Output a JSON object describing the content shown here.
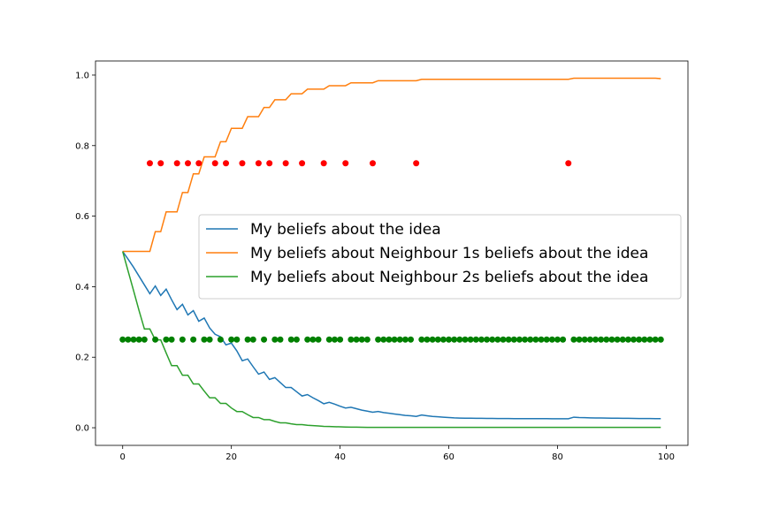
{
  "chart_data": {
    "type": "line",
    "title": "",
    "xlabel": "",
    "ylabel": "",
    "xlim": [
      -5,
      104
    ],
    "ylim": [
      -0.05,
      1.04
    ],
    "xticks": [
      0,
      20,
      40,
      60,
      80,
      100
    ],
    "xtick_labels": [
      "0",
      "20",
      "40",
      "60",
      "80",
      "100"
    ],
    "yticks": [
      0.0,
      0.2,
      0.4,
      0.6,
      0.8,
      1.0
    ],
    "ytick_labels": [
      "0.0",
      "0.2",
      "0.4",
      "0.6",
      "0.8",
      "1.0"
    ],
    "grid": false,
    "legend": "center-right",
    "series": [
      {
        "name": "My beliefs about the idea",
        "color": "#1f77b4",
        "type": "line",
        "x": [
          0,
          1,
          2,
          3,
          4,
          5,
          6,
          7,
          8,
          9,
          10,
          11,
          12,
          13,
          14,
          15,
          16,
          17,
          18,
          19,
          20,
          21,
          22,
          23,
          24,
          25,
          26,
          27,
          28,
          29,
          30,
          31,
          32,
          33,
          34,
          35,
          36,
          37,
          38,
          39,
          40,
          41,
          42,
          43,
          44,
          45,
          46,
          47,
          48,
          49,
          50,
          51,
          52,
          53,
          54,
          55,
          56,
          57,
          58,
          59,
          60,
          61,
          62,
          63,
          64,
          65,
          66,
          67,
          68,
          69,
          70,
          71,
          72,
          73,
          74,
          75,
          76,
          77,
          78,
          79,
          80,
          81,
          82,
          83,
          84,
          85,
          86,
          87,
          88,
          89,
          90,
          91,
          92,
          93,
          94,
          95,
          96,
          97,
          98,
          99
        ],
        "y": [
          0.5,
          0.478,
          0.455,
          0.43,
          0.405,
          0.38,
          0.402,
          0.375,
          0.393,
          0.363,
          0.335,
          0.35,
          0.32,
          0.332,
          0.302,
          0.311,
          0.283,
          0.265,
          0.258,
          0.235,
          0.24,
          0.218,
          0.19,
          0.195,
          0.173,
          0.152,
          0.158,
          0.137,
          0.142,
          0.128,
          0.114,
          0.114,
          0.102,
          0.09,
          0.094,
          0.085,
          0.077,
          0.068,
          0.072,
          0.067,
          0.061,
          0.056,
          0.058,
          0.054,
          0.05,
          0.047,
          0.044,
          0.046,
          0.043,
          0.041,
          0.039,
          0.037,
          0.035,
          0.034,
          0.032,
          0.036,
          0.034,
          0.032,
          0.031,
          0.03,
          0.029,
          0.028,
          0.0275,
          0.0272,
          0.027,
          0.0268,
          0.0266,
          0.0264,
          0.0263,
          0.0262,
          0.0261,
          0.026,
          0.0259,
          0.0259,
          0.0258,
          0.0258,
          0.0257,
          0.0257,
          0.0257,
          0.0256,
          0.0256,
          0.0256,
          0.0256,
          0.03,
          0.029,
          0.0285,
          0.028,
          0.0278,
          0.0276,
          0.0274,
          0.0272,
          0.027,
          0.0268,
          0.0266,
          0.0264,
          0.0262,
          0.0261,
          0.026,
          0.0258,
          0.0258
        ]
      },
      {
        "name": "My beliefs about Neighbour 1s beliefs about the idea",
        "color": "#ff7f0e",
        "type": "line",
        "x": [
          0,
          1,
          2,
          3,
          4,
          5,
          6,
          7,
          8,
          9,
          10,
          11,
          12,
          13,
          14,
          15,
          16,
          17,
          18,
          19,
          20,
          21,
          22,
          23,
          24,
          25,
          26,
          27,
          28,
          29,
          30,
          31,
          32,
          33,
          34,
          35,
          36,
          37,
          38,
          39,
          40,
          41,
          42,
          43,
          44,
          45,
          46,
          47,
          48,
          49,
          50,
          51,
          52,
          53,
          54,
          55,
          56,
          57,
          58,
          59,
          60,
          61,
          62,
          63,
          64,
          65,
          66,
          67,
          68,
          69,
          70,
          71,
          72,
          73,
          74,
          75,
          76,
          77,
          78,
          79,
          80,
          81,
          82,
          83,
          84,
          85,
          86,
          87,
          88,
          89,
          90,
          91,
          92,
          93,
          94,
          95,
          96,
          97,
          98,
          99
        ],
        "y": [
          0.5,
          0.5,
          0.5,
          0.5,
          0.5,
          0.5,
          0.556,
          0.556,
          0.612,
          0.612,
          0.612,
          0.667,
          0.667,
          0.72,
          0.72,
          0.768,
          0.768,
          0.768,
          0.811,
          0.811,
          0.849,
          0.849,
          0.849,
          0.882,
          0.882,
          0.882,
          0.908,
          0.908,
          0.93,
          0.93,
          0.93,
          0.947,
          0.947,
          0.947,
          0.96,
          0.96,
          0.96,
          0.96,
          0.97,
          0.97,
          0.97,
          0.97,
          0.978,
          0.978,
          0.978,
          0.978,
          0.978,
          0.984,
          0.984,
          0.984,
          0.984,
          0.984,
          0.984,
          0.984,
          0.984,
          0.988,
          0.988,
          0.988,
          0.988,
          0.988,
          0.988,
          0.988,
          0.988,
          0.988,
          0.988,
          0.988,
          0.988,
          0.988,
          0.988,
          0.988,
          0.988,
          0.988,
          0.988,
          0.988,
          0.988,
          0.988,
          0.988,
          0.988,
          0.988,
          0.988,
          0.988,
          0.988,
          0.988,
          0.991,
          0.991,
          0.991,
          0.991,
          0.991,
          0.991,
          0.991,
          0.991,
          0.991,
          0.991,
          0.991,
          0.991,
          0.991,
          0.991,
          0.991,
          0.991,
          0.99
        ]
      },
      {
        "name": "My beliefs about Neighbour 2s beliefs about the idea",
        "color": "#2ca02c",
        "type": "line",
        "x": [
          0,
          1,
          2,
          3,
          4,
          5,
          6,
          7,
          8,
          9,
          10,
          11,
          12,
          13,
          14,
          15,
          16,
          17,
          18,
          19,
          20,
          21,
          22,
          23,
          24,
          25,
          26,
          27,
          28,
          29,
          30,
          31,
          32,
          33,
          34,
          35,
          36,
          37,
          38,
          39,
          40,
          41,
          42,
          43,
          44,
          45,
          46,
          47,
          48,
          49,
          50,
          51,
          52,
          53,
          54,
          55,
          56,
          57,
          58,
          59,
          60,
          61,
          62,
          63,
          64,
          65,
          66,
          67,
          68,
          69,
          70,
          71,
          72,
          73,
          74,
          75,
          76,
          77,
          78,
          79,
          80,
          81,
          82,
          83,
          84,
          85,
          86,
          87,
          88,
          89,
          90,
          91,
          92,
          93,
          94,
          95,
          96,
          97,
          98,
          99
        ],
        "y": [
          0.5,
          0.444,
          0.389,
          0.333,
          0.28,
          0.28,
          0.249,
          0.249,
          0.212,
          0.176,
          0.176,
          0.149,
          0.149,
          0.124,
          0.124,
          0.104,
          0.085,
          0.085,
          0.069,
          0.069,
          0.056,
          0.046,
          0.046,
          0.037,
          0.029,
          0.029,
          0.023,
          0.023,
          0.018,
          0.014,
          0.014,
          0.011,
          0.009,
          0.009,
          0.007,
          0.006,
          0.005,
          0.004,
          0.0035,
          0.003,
          0.0025,
          0.002,
          0.0018,
          0.0016,
          0.0014,
          0.0012,
          0.0011,
          0.001,
          0.001,
          0.001,
          0.001,
          0.001,
          0.001,
          0.001,
          0.001,
          0.001,
          0.001,
          0.001,
          0.001,
          0.001,
          0.001,
          0.001,
          0.001,
          0.001,
          0.001,
          0.001,
          0.001,
          0.001,
          0.001,
          0.001,
          0.001,
          0.001,
          0.001,
          0.001,
          0.001,
          0.001,
          0.001,
          0.001,
          0.001,
          0.001,
          0.001,
          0.001,
          0.001,
          0.001,
          0.001,
          0.001,
          0.001,
          0.001,
          0.001,
          0.001,
          0.001,
          0.001,
          0.001,
          0.001,
          0.001,
          0.001,
          0.001,
          0.001,
          0.001,
          0.001
        ]
      },
      {
        "color": "#ff0000",
        "type": "scatter",
        "x": [
          5,
          7,
          10,
          12,
          14,
          17,
          19,
          22,
          25,
          27,
          30,
          33,
          37,
          41,
          46,
          54,
          82
        ],
        "y": [
          0.75,
          0.75,
          0.75,
          0.75,
          0.75,
          0.75,
          0.75,
          0.75,
          0.75,
          0.75,
          0.75,
          0.75,
          0.75,
          0.75,
          0.75,
          0.75,
          0.75
        ]
      },
      {
        "color": "#008000",
        "type": "scatter",
        "x": [
          0,
          1,
          2,
          3,
          4,
          6,
          8,
          9,
          11,
          13,
          15,
          16,
          18,
          20,
          21,
          23,
          24,
          26,
          28,
          29,
          31,
          32,
          34,
          35,
          36,
          38,
          39,
          40,
          42,
          43,
          44,
          45,
          47,
          48,
          49,
          50,
          51,
          52,
          53,
          55,
          56,
          57,
          58,
          59,
          60,
          61,
          62,
          63,
          64,
          65,
          66,
          67,
          68,
          69,
          70,
          71,
          72,
          73,
          74,
          75,
          76,
          77,
          78,
          79,
          80,
          81,
          83,
          84,
          85,
          86,
          87,
          88,
          89,
          90,
          91,
          92,
          93,
          94,
          95,
          96,
          97,
          98,
          99
        ],
        "y": [
          0.25,
          0.25,
          0.25,
          0.25,
          0.25,
          0.25,
          0.25,
          0.25,
          0.25,
          0.25,
          0.25,
          0.25,
          0.25,
          0.25,
          0.25,
          0.25,
          0.25,
          0.25,
          0.25,
          0.25,
          0.25,
          0.25,
          0.25,
          0.25,
          0.25,
          0.25,
          0.25,
          0.25,
          0.25,
          0.25,
          0.25,
          0.25,
          0.25,
          0.25,
          0.25,
          0.25,
          0.25,
          0.25,
          0.25,
          0.25,
          0.25,
          0.25,
          0.25,
          0.25,
          0.25,
          0.25,
          0.25,
          0.25,
          0.25,
          0.25,
          0.25,
          0.25,
          0.25,
          0.25,
          0.25,
          0.25,
          0.25,
          0.25,
          0.25,
          0.25,
          0.25,
          0.25,
          0.25,
          0.25,
          0.25,
          0.25,
          0.25,
          0.25,
          0.25,
          0.25,
          0.25,
          0.25,
          0.25,
          0.25,
          0.25,
          0.25,
          0.25,
          0.25,
          0.25,
          0.25,
          0.25,
          0.25,
          0.25
        ]
      }
    ]
  }
}
